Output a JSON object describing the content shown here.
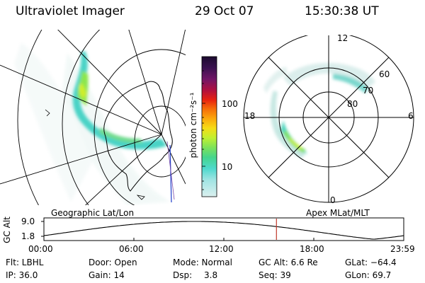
{
  "header": {
    "title": "Ultraviolet Imager",
    "date": "29 Oct 07",
    "time": "15:30:38 UT"
  },
  "geo_panel": {
    "label": "Geographic Lat/Lon"
  },
  "polar_panel": {
    "label": "Apex MLat/MLT",
    "mlt_labels": [
      "12",
      "18",
      "6",
      "0"
    ],
    "lat_labels": [
      "60",
      "70",
      "80"
    ]
  },
  "colorbar": {
    "unit_label": "photon cm⁻²s⁻¹",
    "tick_labels": [
      "100",
      "10"
    ],
    "colors": [
      "#1b0b2e",
      "#3a1150",
      "#701566",
      "#b0103f",
      "#e8230f",
      "#f56a08",
      "#fba60c",
      "#f6dc16",
      "#c0f031",
      "#7ce25b",
      "#45d58d",
      "#4fd9cd",
      "#a0e4e3",
      "#dbf0ef"
    ]
  },
  "altitude_plot": {
    "ylabel": "GC Alt",
    "ytick_labels": [
      "9.0",
      "1.8"
    ],
    "xtick_labels": [
      "00:00",
      "06:00",
      "12:00",
      "18:00",
      "23:59"
    ],
    "marker_time_hours": 15.51,
    "marker_color": "#c0392b"
  },
  "info": {
    "flt": "Flt: LBHL",
    "door": "Door: Open",
    "mode": "Mode: Normal",
    "gc_alt": "GC Alt: 6.6 Re",
    "glat": "GLat: −64.4",
    "ip": "IP: 36.0",
    "gain": "Gain: 14",
    "dsp_label": "Dsp:",
    "dsp_value": "3.8",
    "seq": "Seq: 39",
    "glon": "GLon:  69.7"
  }
}
